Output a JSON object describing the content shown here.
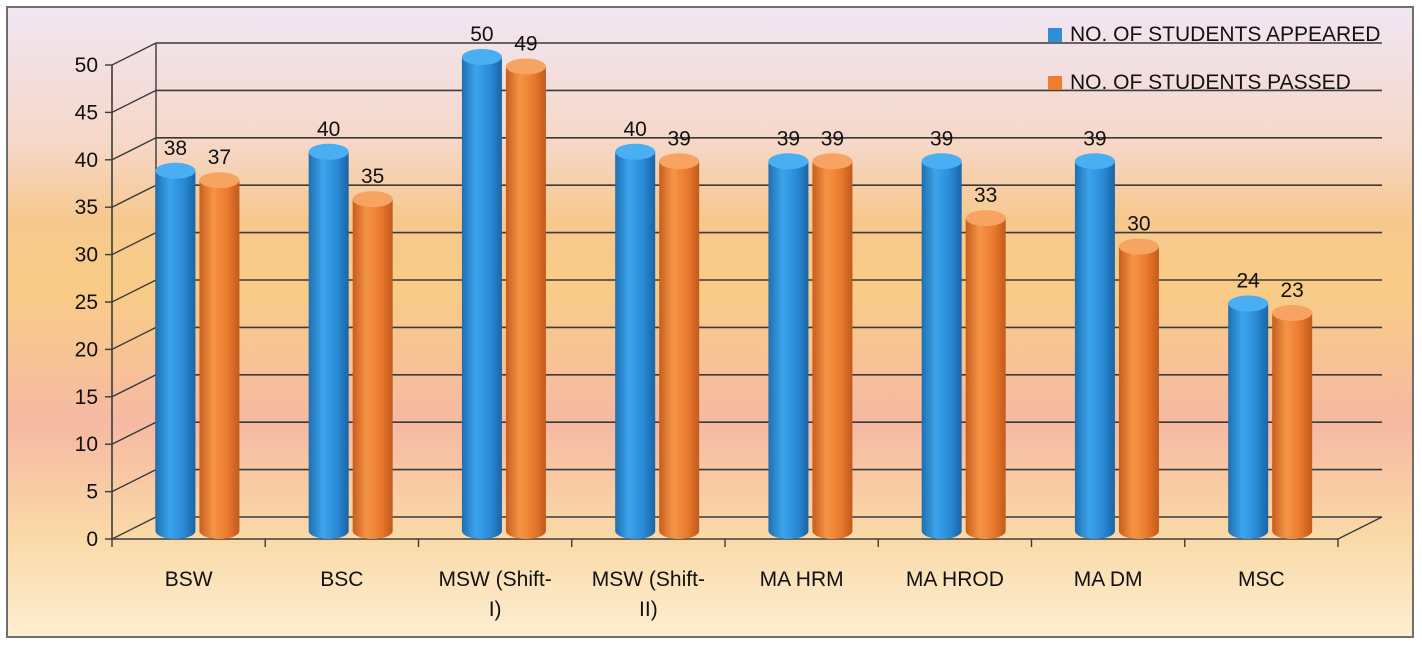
{
  "chart_data": {
    "type": "bar",
    "categories": [
      "BSW",
      "BSC",
      "MSW (Shift-I)",
      "MSW (Shift-II)",
      "MA HRM",
      "MA HROD",
      "MA DM",
      "MSC"
    ],
    "category_lines": [
      [
        "BSW"
      ],
      [
        "BSC"
      ],
      [
        "MSW (Shift-",
        "I)"
      ],
      [
        "MSW (Shift-",
        "II)"
      ],
      [
        "MA HRM"
      ],
      [
        "MA HROD"
      ],
      [
        "MA DM"
      ],
      [
        "MSC"
      ]
    ],
    "series": [
      {
        "name": "NO. OF STUDENTS APPEARED",
        "values": [
          38,
          40,
          50,
          40,
          39,
          39,
          39,
          24
        ],
        "color": "#2e8fd6"
      },
      {
        "name": "NO. OF STUDENTS PASSED",
        "values": [
          37,
          35,
          49,
          39,
          39,
          33,
          30,
          23
        ],
        "color": "#ee7d2e"
      }
    ],
    "ylim": [
      0,
      50
    ],
    "yticks": [
      0,
      5,
      10,
      15,
      20,
      25,
      30,
      35,
      40,
      45,
      50
    ],
    "grid": true,
    "legend_position": "top-right",
    "data_labels": true
  }
}
